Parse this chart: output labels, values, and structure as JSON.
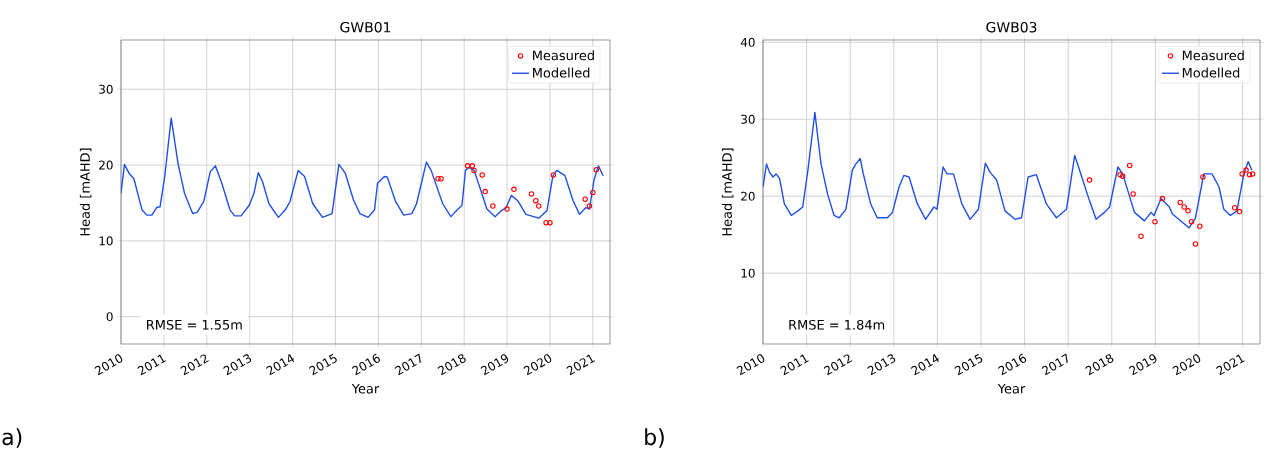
{
  "chart_data": [
    {
      "type": "line",
      "title": "GWB01",
      "xlabel": "Year",
      "ylabel": "Head [mAHD]",
      "annotations": [
        "RMSE = 1.55m",
        "a)"
      ],
      "xlim": [
        2010,
        2021.4
      ],
      "ylim": [
        -3.6,
        36.5
      ],
      "xticks": [
        2010,
        2011,
        2012,
        2013,
        2014,
        2015,
        2016,
        2017,
        2018,
        2019,
        2020,
        2021
      ],
      "yticks": [
        0,
        10,
        20,
        30
      ],
      "grid": true,
      "legend": "top right",
      "series": [
        {
          "name": "Measured",
          "type": "scatter",
          "marker": "circle",
          "color": "#ff0000",
          "x": [
            2017.39,
            2017.46,
            2018.08,
            2018.19,
            2018.23,
            2018.42,
            2018.49,
            2018.67,
            2019.0,
            2019.16,
            2019.57,
            2019.67,
            2019.74,
            2019.91,
            2020.0,
            2020.08,
            2020.82,
            2020.92,
            2021.0,
            2021.08
          ],
          "values": [
            18.2,
            18.2,
            19.9,
            19.9,
            19.3,
            18.7,
            16.5,
            14.6,
            14.2,
            16.8,
            16.2,
            15.3,
            14.6,
            12.4,
            12.4,
            18.7,
            15.5,
            14.6,
            16.4,
            19.4
          ]
        },
        {
          "name": "Modelled",
          "color": "#1f50e6",
          "x": [
            2010.0,
            2010.08,
            2010.19,
            2010.3,
            2010.49,
            2010.6,
            2010.72,
            2010.83,
            2010.91,
            2011.02,
            2011.17,
            2011.33,
            2011.48,
            2011.67,
            2011.78,
            2011.93,
            2012.08,
            2012.2,
            2012.35,
            2012.54,
            2012.65,
            2012.8,
            2012.99,
            2013.1,
            2013.2,
            2013.3,
            2013.45,
            2013.67,
            2013.83,
            2013.94,
            2014.13,
            2014.28,
            2014.47,
            2014.7,
            2014.92,
            2015.08,
            2015.23,
            2015.42,
            2015.57,
            2015.76,
            2015.91,
            2015.98,
            2016.14,
            2016.21,
            2016.4,
            2016.59,
            2016.78,
            2016.89,
            2017.12,
            2017.23,
            2017.5,
            2017.69,
            2017.84,
            2017.95,
            2018.03,
            2018.11,
            2018.23,
            2018.38,
            2018.53,
            2018.72,
            2018.87,
            2018.98,
            2019.1,
            2019.25,
            2019.44,
            2019.74,
            2019.93,
            2020.07,
            2020.16,
            2020.35,
            2020.54,
            2020.69,
            2020.84,
            2020.92,
            2021.03,
            2021.13,
            2021.24
          ],
          "values": [
            16.3,
            20.1,
            18.9,
            18.2,
            14.1,
            13.4,
            13.4,
            14.4,
            14.5,
            18.5,
            26.2,
            20.2,
            16.3,
            13.6,
            13.8,
            15.2,
            19.1,
            19.9,
            17.6,
            14.1,
            13.3,
            13.3,
            14.7,
            16.3,
            19.0,
            17.8,
            14.9,
            13.1,
            14.1,
            15.2,
            19.3,
            18.5,
            14.9,
            13.1,
            13.6,
            20.1,
            18.9,
            15.4,
            13.6,
            13.1,
            14.1,
            17.6,
            18.5,
            18.4,
            15.2,
            13.4,
            13.6,
            14.9,
            20.4,
            19.3,
            14.9,
            13.2,
            14.1,
            14.7,
            19.3,
            19.7,
            19.3,
            16.8,
            14.2,
            13.2,
            14.0,
            14.4,
            16.0,
            15.3,
            13.5,
            13.0,
            14.0,
            18.6,
            19.3,
            18.6,
            15.3,
            13.5,
            14.4,
            14.2,
            18.1,
            19.9,
            18.6
          ]
        }
      ]
    },
    {
      "type": "line",
      "title": "GWB03",
      "xlabel": "Year",
      "ylabel": "Head [mAHD]",
      "annotations": [
        "RMSE = 1.84m",
        "b)"
      ],
      "xlim": [
        2010,
        2021.4
      ],
      "ylim": [
        0.8,
        40.3
      ],
      "xticks": [
        2010,
        2011,
        2012,
        2013,
        2014,
        2015,
        2016,
        2017,
        2018,
        2019,
        2020,
        2021
      ],
      "yticks": [
        10,
        20,
        30,
        40
      ],
      "grid": true,
      "legend": "top right",
      "series": [
        {
          "name": "Measured",
          "type": "scatter",
          "marker": "circle",
          "color": "#ff0000",
          "x": [
            2017.49,
            2018.19,
            2018.25,
            2018.41,
            2018.49,
            2018.67,
            2018.99,
            2019.16,
            2019.57,
            2019.66,
            2019.75,
            2019.83,
            2019.92,
            2020.02,
            2020.09,
            2020.82,
            2020.93,
            2020.99,
            2021.08,
            2021.16,
            2021.23
          ],
          "values": [
            22.1,
            22.8,
            22.6,
            24.0,
            20.3,
            14.8,
            16.7,
            19.7,
            19.2,
            18.6,
            18.1,
            16.7,
            13.8,
            16.1,
            22.5,
            18.5,
            18.0,
            22.9,
            23.4,
            22.8,
            22.9
          ]
        },
        {
          "name": "Modelled",
          "color": "#1f50e6",
          "x": [
            2010.0,
            2010.08,
            2010.15,
            2010.23,
            2010.3,
            2010.38,
            2010.49,
            2010.65,
            2010.8,
            2010.91,
            2011.03,
            2011.19,
            2011.33,
            2011.48,
            2011.63,
            2011.75,
            2011.9,
            2012.05,
            2012.13,
            2012.23,
            2012.3,
            2012.47,
            2012.62,
            2012.85,
            2012.97,
            2013.12,
            2013.23,
            2013.35,
            2013.54,
            2013.73,
            2013.92,
            2013.99,
            2014.13,
            2014.22,
            2014.37,
            2014.56,
            2014.75,
            2014.94,
            2015.1,
            2015.21,
            2015.36,
            2015.55,
            2015.78,
            2015.93,
            2016.08,
            2016.27,
            2016.5,
            2016.73,
            2016.96,
            2017.15,
            2017.26,
            2017.49,
            2017.64,
            2017.83,
            2017.95,
            2018.14,
            2018.25,
            2018.52,
            2018.75,
            2018.9,
            2018.97,
            2019.13,
            2019.32,
            2019.39,
            2019.77,
            2019.92,
            2020.11,
            2020.3,
            2020.46,
            2020.57,
            2020.72,
            2020.87,
            2021.03,
            2021.13,
            2021.21
          ],
          "values": [
            21.2,
            24.2,
            23.1,
            22.5,
            22.9,
            22.3,
            19.0,
            17.5,
            18.1,
            18.6,
            23.4,
            30.9,
            24.2,
            20.3,
            17.5,
            17.2,
            18.3,
            23.4,
            24.2,
            24.9,
            22.9,
            19.0,
            17.2,
            17.2,
            17.9,
            21.2,
            22.7,
            22.5,
            19.0,
            17.0,
            18.6,
            18.3,
            23.8,
            22.9,
            22.9,
            19.0,
            17.0,
            18.3,
            24.3,
            23.1,
            22.1,
            18.1,
            17.0,
            17.2,
            22.5,
            22.8,
            19.0,
            17.2,
            18.3,
            25.3,
            23.4,
            19.4,
            17.0,
            17.9,
            18.6,
            23.8,
            22.9,
            17.9,
            16.8,
            17.9,
            17.5,
            19.7,
            18.6,
            17.7,
            15.9,
            17.2,
            22.9,
            22.9,
            21.2,
            18.3,
            17.5,
            18.1,
            22.9,
            24.5,
            23.4
          ]
        }
      ]
    }
  ]
}
